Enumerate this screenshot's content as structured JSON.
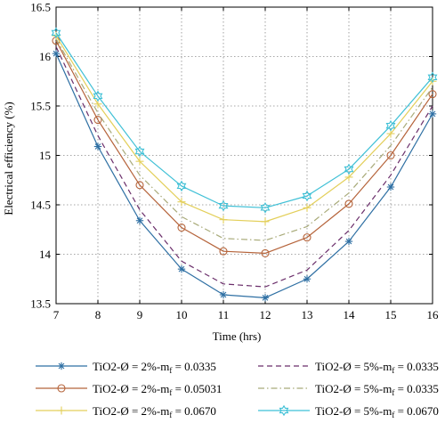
{
  "chart_data": {
    "type": "line",
    "title": "",
    "xlabel": "Time (hrs)",
    "ylabel": "Electrical efficiency (%)",
    "xlim": [
      7,
      16
    ],
    "ylim": [
      13.5,
      16.5
    ],
    "grid": true,
    "legend_position": "bottom",
    "x": [
      7,
      8,
      9,
      10,
      11,
      12,
      13,
      14,
      15,
      16
    ],
    "x_ticks": [
      "7",
      "8",
      "9",
      "10",
      "11",
      "12",
      "13",
      "14",
      "15",
      "16"
    ],
    "y_ticks": [
      "13.5",
      "14",
      "14.5",
      "15",
      "15.5",
      "16",
      "16.5"
    ],
    "y_tick_values": [
      13.5,
      14,
      14.5,
      15,
      15.5,
      16,
      16.5
    ],
    "series": [
      {
        "name_prefix": "TiO2-Ø = 2%-m",
        "name_suffix": " = 0.0335",
        "color": "#2e6fa3",
        "dash": "solid",
        "marker": "asterisk",
        "values": [
          16.03,
          15.09,
          14.34,
          13.85,
          13.59,
          13.56,
          13.75,
          14.13,
          14.68,
          15.42
        ]
      },
      {
        "name_prefix": "TiO2-Ø = 5%-m",
        "name_suffix": " = 0.0335",
        "color": "#6b2f6b",
        "dash": "dashed",
        "marker": "none",
        "values": [
          16.1,
          15.2,
          14.45,
          13.93,
          13.7,
          13.67,
          13.84,
          14.24,
          14.8,
          15.5
        ]
      },
      {
        "name_prefix": "TiO2-Ø = 2%-m",
        "name_suffix": " = 0.05031",
        "color": "#b5633a",
        "dash": "solid",
        "marker": "circle",
        "values": [
          16.16,
          15.36,
          14.7,
          14.27,
          14.03,
          14.01,
          14.17,
          14.51,
          15.0,
          15.62
        ]
      },
      {
        "name_prefix": "TiO2-Ø = 5%-m",
        "name_suffix": " = 0.0335",
        "color": "#a9ab7a",
        "dash": "dashdot",
        "marker": "none",
        "values": [
          16.18,
          15.43,
          14.8,
          14.38,
          14.16,
          14.14,
          14.28,
          14.62,
          15.1,
          15.69
        ]
      },
      {
        "name_prefix": "TiO2-Ø = 2%-m",
        "name_suffix": " = 0.0670",
        "color": "#e3cf5a",
        "dash": "solid",
        "marker": "plus",
        "values": [
          16.21,
          15.52,
          14.94,
          14.53,
          14.35,
          14.33,
          14.47,
          14.78,
          15.22,
          15.75
        ]
      },
      {
        "name_prefix": "TiO2-Ø = 5%-m",
        "name_suffix": " = 0.0670",
        "color": "#3fc0d6",
        "dash": "solid",
        "marker": "hexagram",
        "values": [
          16.24,
          15.6,
          15.04,
          14.69,
          14.49,
          14.47,
          14.59,
          14.86,
          15.3,
          15.79
        ]
      }
    ]
  }
}
